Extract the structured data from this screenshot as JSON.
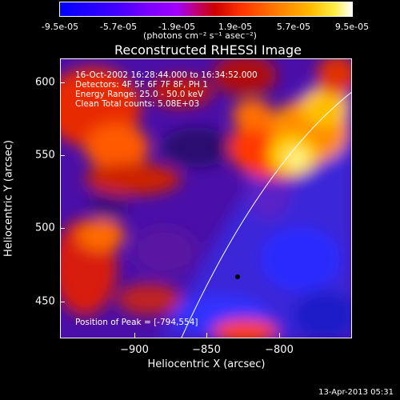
{
  "colorbar": {
    "ticks": [
      "-9.5e-05",
      "-5.7e-05",
      "-1.9e-05",
      "1.9e-05",
      "5.7e-05",
      "9.5e-05"
    ],
    "units": "(photons cm⁻² s⁻¹ asec⁻²)"
  },
  "title": "Reconstructed RHESSI Image",
  "info": {
    "time": "16-Oct-2002 16:28:44.000 to 16:34:52.000",
    "detectors": "Detectors: 4F 5F 6F 7F 8F, PH 1",
    "energy": "Energy Range: 25.0 - 50.0 keV",
    "clean": "Clean    Total counts: 5.08E+03",
    "peak": "Position of Peak = [-794,554]"
  },
  "axes": {
    "xlabel": "Heliocentric X (arcsec)",
    "ylabel": "Heliocentric Y (arcsec)",
    "xticks": [
      "−900",
      "−850",
      "−800"
    ],
    "yticks": [
      "600",
      "550",
      "500",
      "450"
    ]
  },
  "datestamp": "13-Apr-2013 05:31"
}
